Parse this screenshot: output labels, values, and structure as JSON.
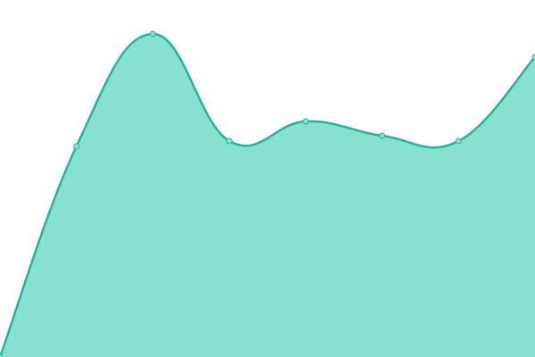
{
  "chart_data": {
    "type": "area",
    "categories": [
      null,
      null,
      null,
      null,
      null,
      null,
      null,
      null
    ],
    "series": [
      {
        "color": "#1fb89a",
        "fill": "#88e0cf",
        "values": [
          0,
          59,
          90.5,
          60.5,
          66,
          62,
          60.5,
          84
        ]
      }
    ],
    "ylim": [
      0,
      100
    ]
  }
}
